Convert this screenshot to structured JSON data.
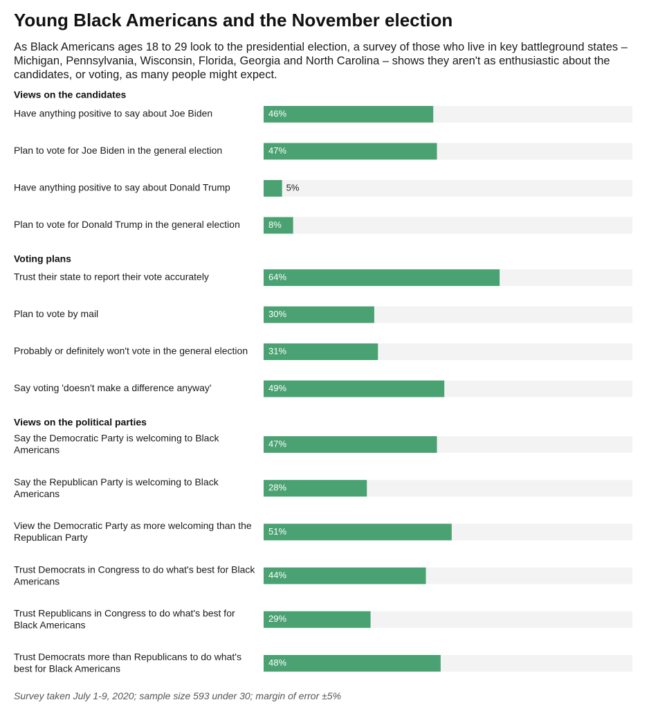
{
  "title": "Young Black Americans and the November election",
  "subtitle": "As Black Americans ages 18 to 29 look to the presidential election, a survey of those who live in key battleground states – Michigan, Pennsylvania, Wisconsin, Florida, Georgia and North Carolina – shows they aren't as enthusiastic about the candidates, or voting, as many people might expect.",
  "footnote": "Survey taken July 1-9, 2020; sample size 593 under 30; margin of error ±5%",
  "colors": {
    "bar": "#4aa272",
    "track": "#f3f3f3",
    "label_inside": "#ffffff",
    "label_outside": "#1a1a1a"
  },
  "chart_data": {
    "type": "bar",
    "orientation": "horizontal",
    "unit": "%",
    "xlim": [
      0,
      100
    ],
    "grid": false,
    "groups": [
      {
        "name": "Views on the candidates",
        "items": [
          {
            "label": "Have anything positive to say about Joe Biden",
            "value": 46
          },
          {
            "label": "Plan to vote for Joe Biden in the general election",
            "value": 47
          },
          {
            "label": "Have anything positive to say about Donald Trump",
            "value": 5
          },
          {
            "label": "Plan to vote for Donald Trump in the general election",
            "value": 8
          }
        ]
      },
      {
        "name": "Voting plans",
        "items": [
          {
            "label": "Trust their state to report their vote accurately",
            "value": 64
          },
          {
            "label": "Plan to vote by mail",
            "value": 30
          },
          {
            "label": "Probably or definitely won't vote in the general election",
            "value": 31
          },
          {
            "label": "Say voting 'doesn't make a difference anyway'",
            "value": 49
          }
        ]
      },
      {
        "name": "Views on the political parties",
        "items": [
          {
            "label": [
              "Say the Democratic Party is welcoming to Black",
              "Americans"
            ],
            "value": 47
          },
          {
            "label": [
              "Say the Republican Party is welcoming to Black",
              "Americans"
            ],
            "value": 28
          },
          {
            "label": [
              "View the Democratic Party as more welcoming than the",
              "Republican Party"
            ],
            "value": 51
          },
          {
            "label": [
              "Trust Democrats in Congress to do what's best for Black",
              "Americans"
            ],
            "value": 44
          },
          {
            "label": [
              "Trust Republicans in Congress to do what's best for",
              "Black Americans"
            ],
            "value": 29
          },
          {
            "label": [
              "Trust Democrats more than Republicans to do what's",
              "best for Black Americans"
            ],
            "value": 48
          }
        ]
      }
    ]
  }
}
